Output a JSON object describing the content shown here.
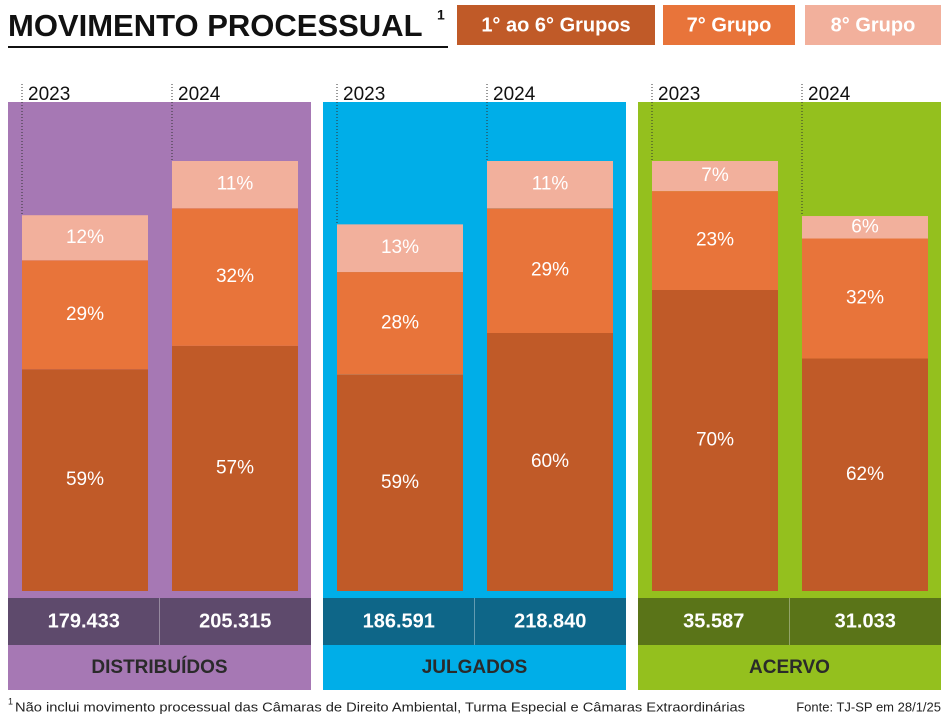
{
  "chart_data": {
    "type": "stacked-bar-panels",
    "title": "MOVIMENTO PROCESSUAL",
    "title_note": "1",
    "series": [
      {
        "name": "1° ao 6° Grupos",
        "color": "#c05a28"
      },
      {
        "name": "7° Grupo",
        "color": "#e8743a"
      },
      {
        "name": "8° Grupo",
        "color": "#f2b09c"
      }
    ],
    "panels": [
      {
        "name": "DISTRIBUÍDOS",
        "color": "#a678b4",
        "band_color": "#5e4a6c",
        "categories": [
          "2023",
          "2024"
        ],
        "totals": [
          179433,
          205315
        ],
        "total_labels": [
          "179.433",
          "205.315"
        ],
        "shares": [
          [
            59,
            29,
            12
          ],
          [
            57,
            32,
            11
          ]
        ],
        "share_labels": [
          [
            "59%",
            "29%",
            "12%"
          ],
          [
            "57%",
            "32%",
            "11%"
          ]
        ]
      },
      {
        "name": "JULGADOS",
        "color": "#00aee8",
        "band_color": "#0e6688",
        "categories": [
          "2023",
          "2024"
        ],
        "totals": [
          186591,
          218840
        ],
        "total_labels": [
          "186.591",
          "218.840"
        ],
        "shares": [
          [
            59,
            28,
            13
          ],
          [
            60,
            29,
            11
          ]
        ],
        "share_labels": [
          [
            "59%",
            "28%",
            "13%"
          ],
          [
            "60%",
            "29%",
            "11%"
          ]
        ]
      },
      {
        "name": "ACERVO",
        "color": "#94c01e",
        "band_color": "#5a7418",
        "categories": [
          "2023",
          "2024"
        ],
        "totals": [
          35587,
          31033
        ],
        "total_labels": [
          "35.587",
          "31.033"
        ],
        "shares": [
          [
            70,
            23,
            7
          ],
          [
            62,
            32,
            6
          ]
        ],
        "share_labels": [
          [
            "70%",
            "23%",
            "7%"
          ],
          [
            "62%",
            "32%",
            "6%"
          ]
        ]
      }
    ],
    "footnote_mark": "1",
    "footnote": "Não inclui movimento processual das Câmaras de Direito Ambiental, Turma Especial e Câmaras Extraordinárias",
    "source": "Fonte: TJ-SP em 28/1/25"
  }
}
